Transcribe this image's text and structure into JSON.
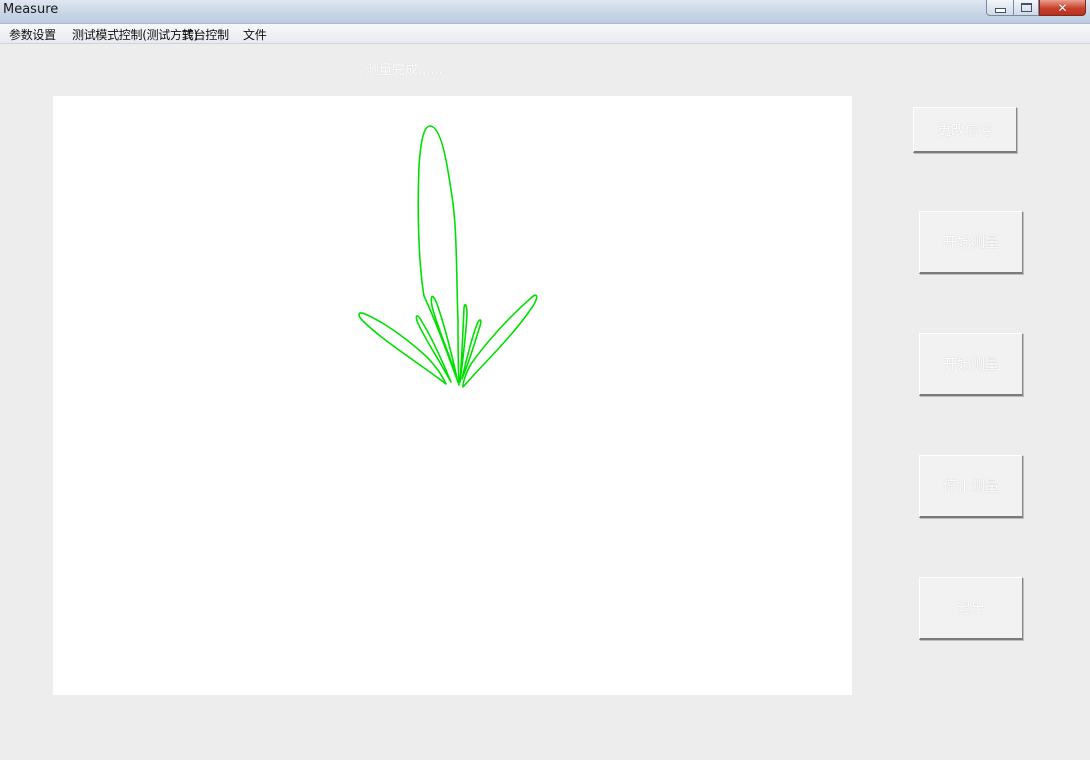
{
  "window": {
    "title": "Measure"
  },
  "menu": {
    "items": [
      {
        "label": "参数设置"
      },
      {
        "label": "测试模式控制(测试方式)"
      },
      {
        "label": "转台控制"
      },
      {
        "label": "文件"
      }
    ]
  },
  "status": {
    "text": "测量完成......"
  },
  "plot": {
    "curve_color": "#00e000",
    "background": "#ffffff"
  },
  "buttons": [
    {
      "label": "更改信号"
    },
    {
      "label": "开始测量"
    },
    {
      "label": "开始测量"
    },
    {
      "label": "停止测量"
    },
    {
      "label": "退出"
    }
  ]
}
